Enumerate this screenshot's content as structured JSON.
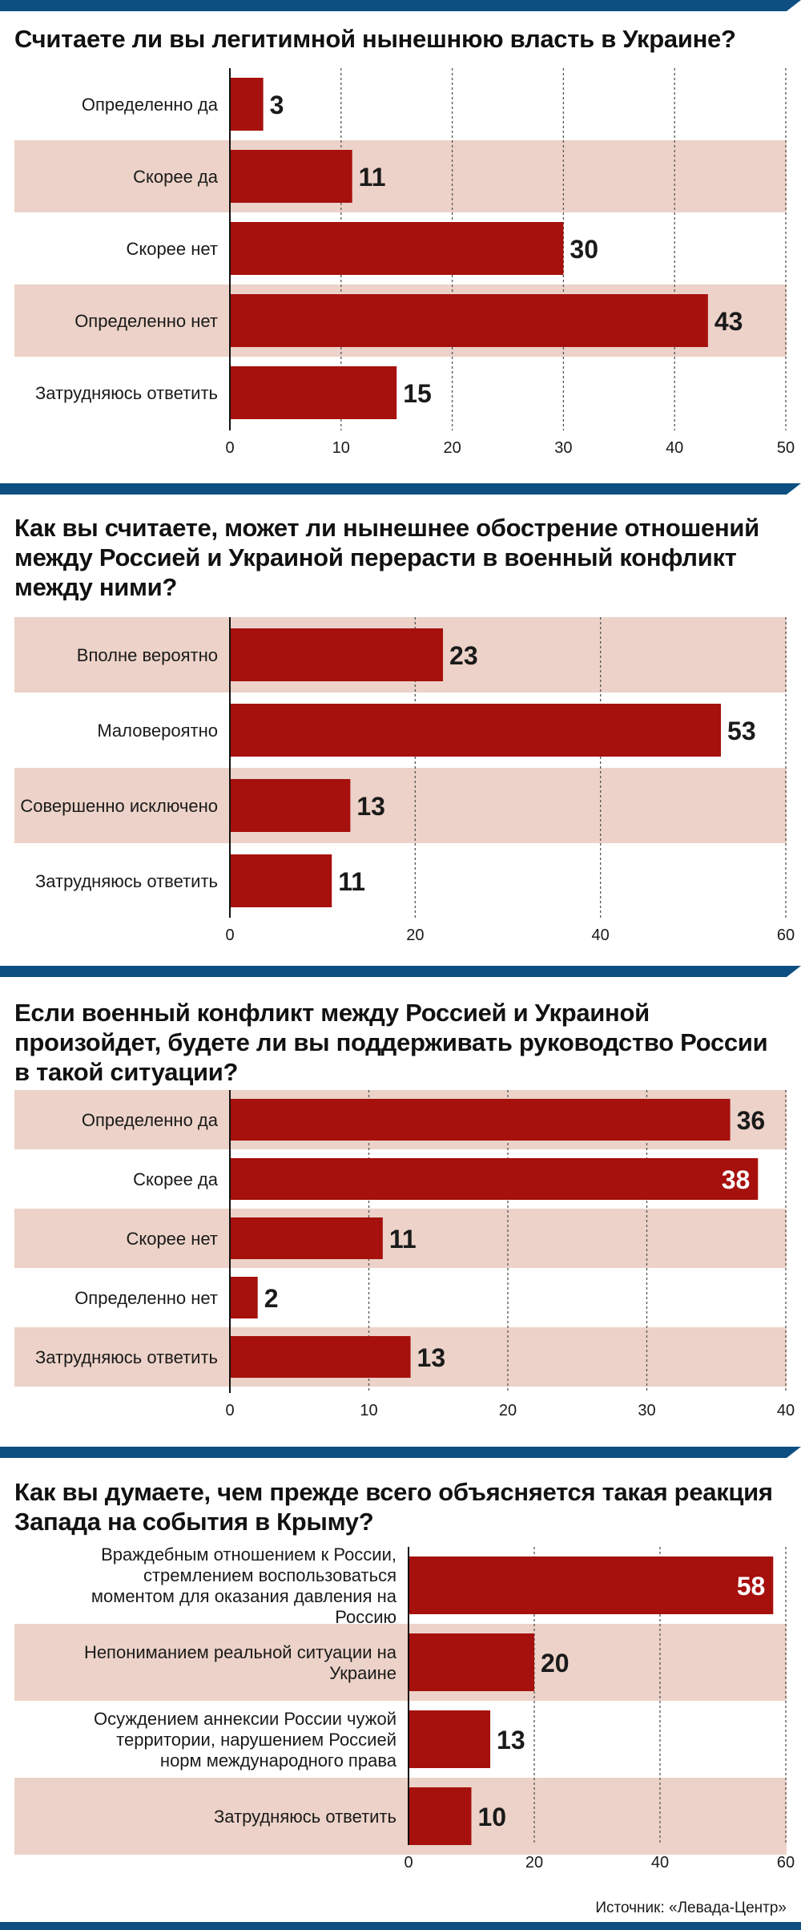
{
  "colors": {
    "bar": "#a6100d",
    "band": "#ecd2c8",
    "header_bar": "#0d4f80",
    "text": "#1a1a1a",
    "value_inside": "#ffffff"
  },
  "source": "Источник: «Левада-Центр»",
  "chart_data": [
    {
      "type": "bar",
      "orientation": "horizontal",
      "title": "Считаете ли вы легитимной нынешнюю власть в Украине?",
      "categories": [
        "Определенно да",
        "Скорее да",
        "Скорее нет",
        "Определенно нет",
        "Затрудняюсь ответить"
      ],
      "values": [
        3,
        11,
        30,
        43,
        15
      ],
      "xlim": [
        0,
        50
      ],
      "ticks": [
        0,
        10,
        20,
        30,
        40,
        50
      ],
      "grid": true
    },
    {
      "type": "bar",
      "orientation": "horizontal",
      "title": "Как вы считаете, может ли нынешнее обострение отношений между Россией и Украиной перерасти в военный конфликт между ними?",
      "categories": [
        "Вполне вероятно",
        "Маловероятно",
        "Совершенно исключено",
        "Затрудняюсь ответить"
      ],
      "values": [
        23,
        53,
        13,
        11
      ],
      "xlim": [
        0,
        60
      ],
      "ticks": [
        0,
        20,
        40,
        60
      ],
      "grid": true
    },
    {
      "type": "bar",
      "orientation": "horizontal",
      "title": "Если военный конфликт между Россией и Украиной произойдет, будете ли вы поддерживать руководство России в такой ситуации?",
      "categories": [
        "Определенно да",
        "Скорее да",
        "Скорее нет",
        "Определенно нет",
        "Затрудняюсь ответить"
      ],
      "values": [
        36,
        38,
        11,
        2,
        13
      ],
      "xlim": [
        0,
        40
      ],
      "ticks": [
        0,
        10,
        20,
        30,
        40
      ],
      "grid": true
    },
    {
      "type": "bar",
      "orientation": "horizontal",
      "title": "Как вы думаете, чем прежде всего объясняется такая реакция Запада на события в Крыму?",
      "categories": [
        "Враждебным отношением к России, стремлением воспользоваться моментом для оказания давления на Россию",
        "Непониманием реальной ситуации на Украине",
        "Осуждением аннексии России чужой территории, нарушением Россией норм международного права",
        "Затрудняюсь ответить"
      ],
      "values": [
        58,
        20,
        13,
        10
      ],
      "xlim": [
        0,
        60
      ],
      "ticks": [
        0,
        20,
        40,
        60
      ],
      "grid": true
    }
  ]
}
